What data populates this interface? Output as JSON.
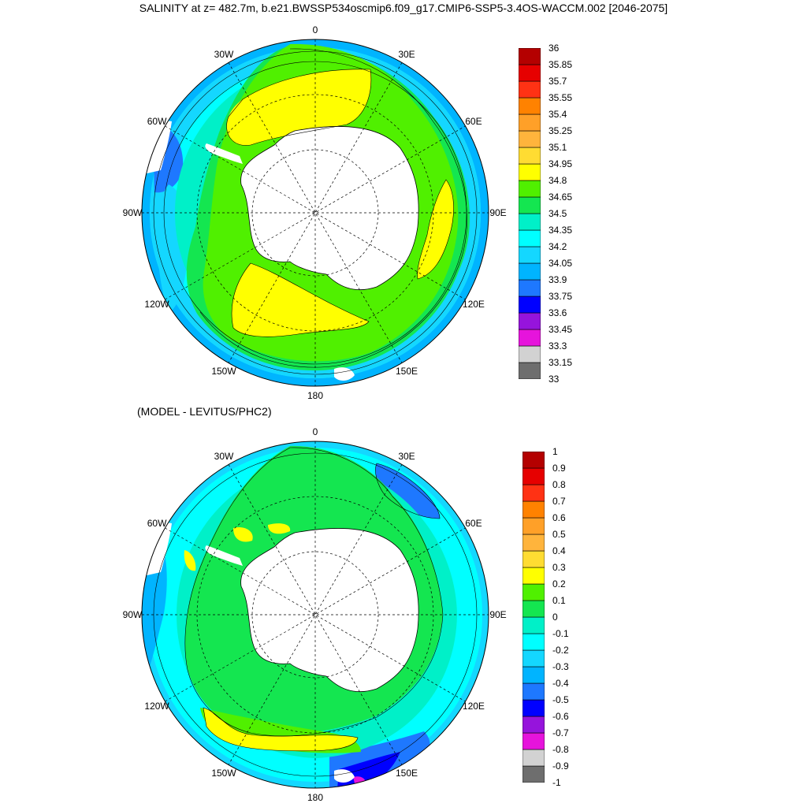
{
  "title": "SALINITY at z= 482.7m, b.e21.BWSSP534oscmip6.f09_g17.CMIP6-SSP5-3.4OS-WACCM.002 [2046-2075]",
  "subtitle": "(MODEL - LEVITUS/PHC2)",
  "longitude_labels": [
    "0",
    "30E",
    "60E",
    "90E",
    "120E",
    "150E",
    "180",
    "150W",
    "120W",
    "90W",
    "60W",
    "30W"
  ],
  "colors": {
    "palette": [
      "#6e6e6e",
      "#d2d2d2",
      "#e614dc",
      "#9614dc",
      "#0000ff",
      "#1e78ff",
      "#00b4ff",
      "#14d7ff",
      "#00ffff",
      "#00f0c8",
      "#14e650",
      "#50f000",
      "#ffff00",
      "#ffdc32",
      "#ffb43c",
      "#ffa028",
      "#ff8200",
      "#ff3214",
      "#e60000",
      "#b40000"
    ],
    "land": "#ffffff",
    "contour": "#000000"
  },
  "colorbars": [
    {
      "labels": [
        "33",
        "33.15",
        "33.3",
        "33.45",
        "33.6",
        "33.75",
        "33.9",
        "34.05",
        "34.2",
        "34.35",
        "34.5",
        "34.65",
        "34.8",
        "34.95",
        "35.1",
        "35.25",
        "35.4",
        "35.55",
        "35.7",
        "35.85",
        "36"
      ]
    },
    {
      "labels": [
        "-1",
        "-0.9",
        "-0.8",
        "-0.7",
        "-0.6",
        "-0.5",
        "-0.4",
        "-0.3",
        "-0.2",
        "-0.1",
        "0",
        "0.1",
        "0.2",
        "0.3",
        "0.4",
        "0.5",
        "0.6",
        "0.7",
        "0.8",
        "0.9",
        "1"
      ]
    }
  ]
}
